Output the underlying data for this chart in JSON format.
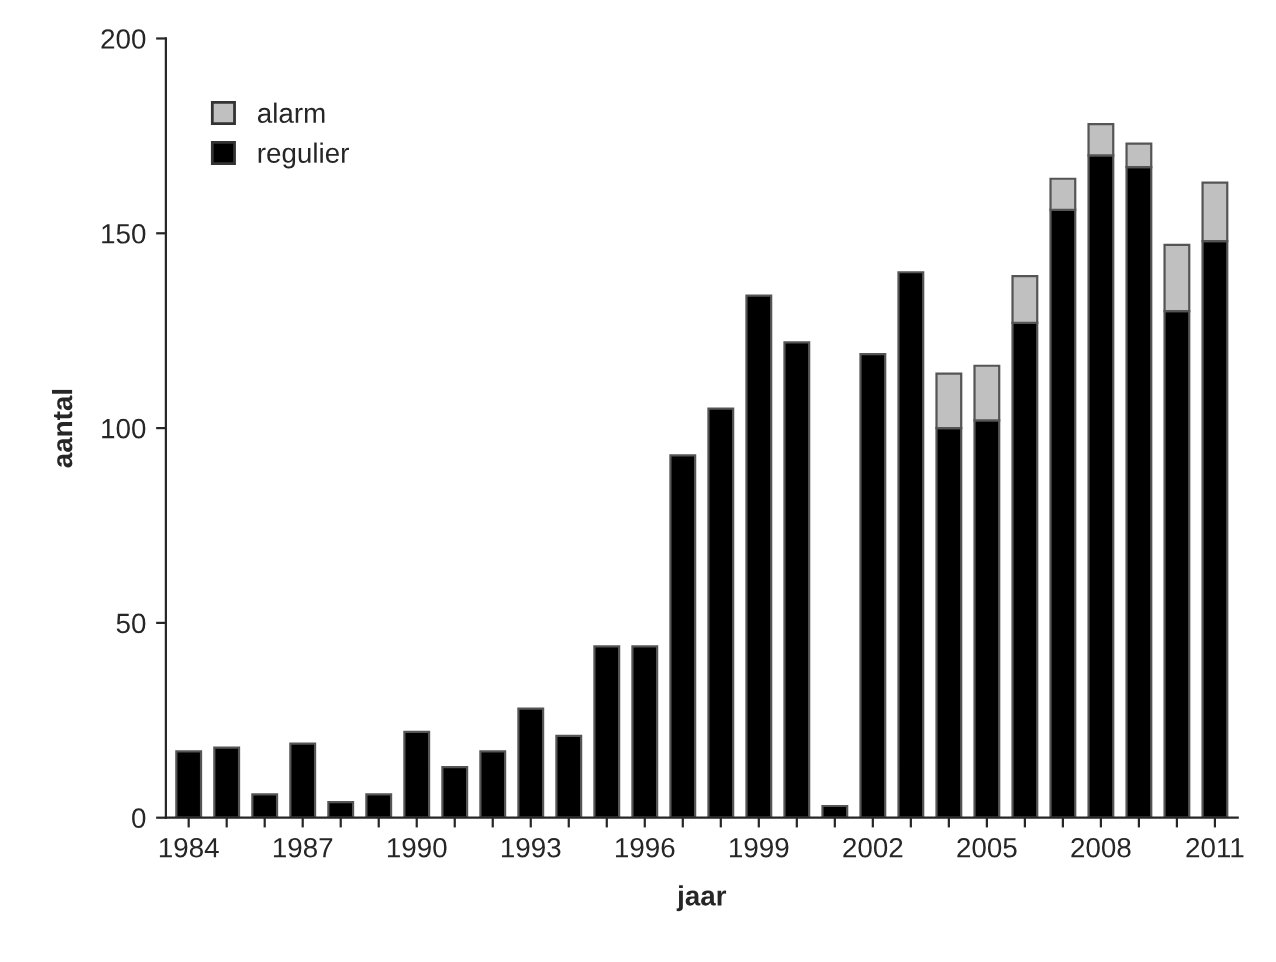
{
  "chart_data": {
    "type": "bar",
    "stacked": true,
    "xlabel": "jaar",
    "ylabel": "aantal",
    "categories": [
      "1984",
      null,
      null,
      "1987",
      null,
      null,
      "1990",
      null,
      null,
      "1993",
      null,
      null,
      "1996",
      null,
      null,
      "1999",
      null,
      null,
      "2002",
      null,
      null,
      "2005",
      null,
      null,
      "2008",
      null,
      null,
      "2011"
    ],
    "series": [
      {
        "name": "regulier",
        "color": "#000000",
        "values": [
          17,
          18,
          6,
          19,
          4,
          6,
          22,
          13,
          17,
          28,
          21,
          44,
          44,
          93,
          105,
          134,
          122,
          3,
          119,
          140,
          100,
          102,
          127,
          156,
          170,
          167,
          130,
          148
        ]
      },
      {
        "name": "alarm",
        "color": "#c0c0c0",
        "values": [
          null,
          null,
          null,
          null,
          null,
          null,
          null,
          null,
          null,
          null,
          null,
          null,
          null,
          null,
          null,
          null,
          null,
          null,
          null,
          null,
          14,
          14,
          12,
          8,
          8,
          6,
          17,
          15
        ]
      }
    ],
    "ylim": [
      0,
      200
    ],
    "yticks": [
      0,
      50,
      100,
      150,
      200
    ],
    "grid": false,
    "legend": "top left"
  }
}
